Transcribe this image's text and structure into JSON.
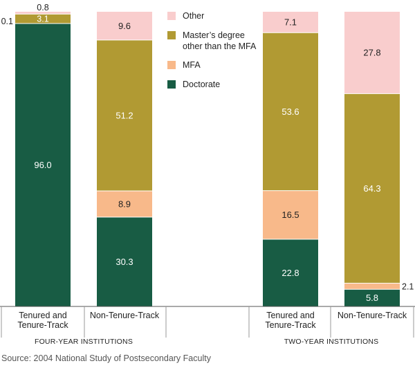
{
  "chart_data": {
    "type": "bar",
    "stacked": true,
    "categories": [
      [
        "Tenured and",
        "Tenure-Track"
      ],
      [
        "Non-Tenure-Track"
      ],
      [
        "Tenured and",
        "Tenure-Track"
      ],
      [
        "Non-Tenure-Track"
      ]
    ],
    "groups": [
      {
        "label": "FOUR-YEAR INSTITUTIONS",
        "categories": [
          0,
          1
        ]
      },
      {
        "label": "TWO-YEAR INSTITUTIONS",
        "categories": [
          2,
          3
        ]
      }
    ],
    "series": [
      {
        "name": "Doctorate",
        "color": "#185c44",
        "values": [
          96.0,
          30.3,
          22.8,
          5.8
        ]
      },
      {
        "name": "MFA",
        "color": "#f8b98a",
        "values": [
          0.1,
          8.9,
          16.5,
          2.1
        ]
      },
      {
        "name": "Master’s degree other than the MFA",
        "color": "#b19a33",
        "values": [
          3.1,
          51.2,
          53.6,
          64.3
        ]
      },
      {
        "name": "Other",
        "color": "#f9cdcd",
        "values": [
          0.8,
          9.6,
          7.1,
          27.8
        ]
      }
    ],
    "legend": {
      "placement": "top-center",
      "entries": [
        {
          "lines": [
            "Other"
          ],
          "series": 3
        },
        {
          "lines": [
            "Master’s degree",
            "other than the MFA"
          ],
          "series": 2
        },
        {
          "lines": [
            "MFA"
          ],
          "series": 1
        },
        {
          "lines": [
            "Doctorate"
          ],
          "series": 0
        }
      ]
    },
    "ylim": [
      0,
      100
    ]
  },
  "source": "Source: 2004 National Study of Postsecondary Faculty"
}
